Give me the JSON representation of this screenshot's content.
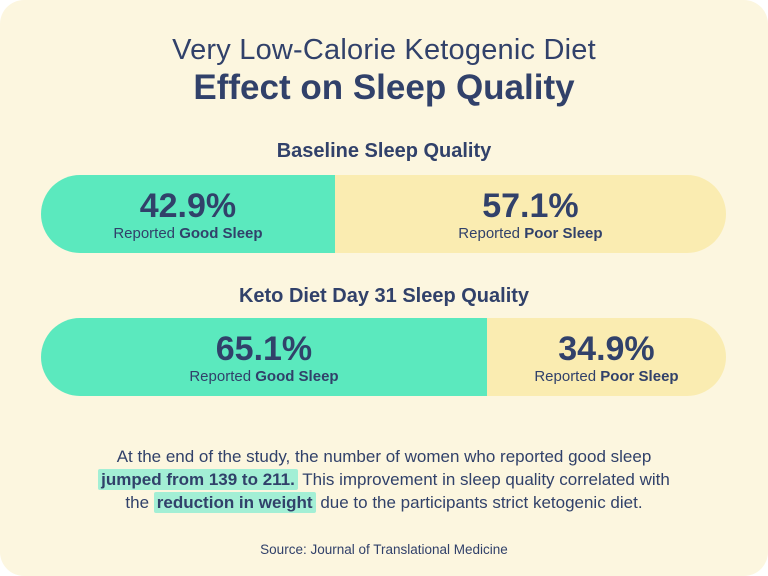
{
  "title": {
    "line1": "Very Low-Calorie Ketogenic Diet",
    "line2": "Effect on Sleep Quality"
  },
  "sections": [
    {
      "heading": "Baseline Sleep Quality",
      "good": {
        "percent": "42.9%",
        "label_prefix": "Reported",
        "label_bold": "Good Sleep",
        "width": "42.9%"
      },
      "poor": {
        "percent": "57.1%",
        "label_prefix": "Reported",
        "label_bold": "Poor Sleep",
        "width": "57.1%"
      }
    },
    {
      "heading": "Keto Diet Day 31 Sleep Quality",
      "good": {
        "percent": "65.1%",
        "label_prefix": "Reported",
        "label_bold": "Good Sleep",
        "width": "65.1%"
      },
      "poor": {
        "percent": "34.9%",
        "label_prefix": "Reported",
        "label_bold": "Poor Sleep",
        "width": "34.9%"
      }
    }
  ],
  "summary": {
    "line1": "At the end of the study, the number of women who reported good sleep",
    "line2_highlight": "jumped from 139 to 211.",
    "line2_rest": " This improvement in sleep quality correlated with",
    "line3_prefix": "the ",
    "line3_highlight": "reduction in weight",
    "line3_rest": " due to the participants strict ketogenic diet."
  },
  "source": "Source: Journal of Translational Medicine",
  "colors": {
    "background": "#FCF6DF",
    "good": "#5BE9BE",
    "poor": "#FAECB1",
    "navy": "#31416A",
    "highlight": "#A3EFD5"
  },
  "chart_data": {
    "type": "bar",
    "subtype": "horizontal-stacked-percentage",
    "title": "Very Low-Calorie Ketogenic Diet — Effect on Sleep Quality",
    "categories": [
      "Baseline Sleep Quality",
      "Keto Diet Day 31 Sleep Quality"
    ],
    "series": [
      {
        "name": "Reported Good Sleep",
        "values": [
          42.9,
          65.1
        ],
        "color": "#5BE9BE"
      },
      {
        "name": "Reported Poor Sleep",
        "values": [
          57.1,
          34.9
        ],
        "color": "#FAECB1"
      }
    ],
    "value_unit": "%",
    "xlim": [
      0,
      100
    ],
    "grid": false,
    "legend_position": "in-bar-labels",
    "annotations": [
      "Women reporting good sleep jumped from 139 to 211",
      "Improvement correlated with reduction in weight"
    ],
    "source": "Source: Journal of Translational Medicine"
  }
}
